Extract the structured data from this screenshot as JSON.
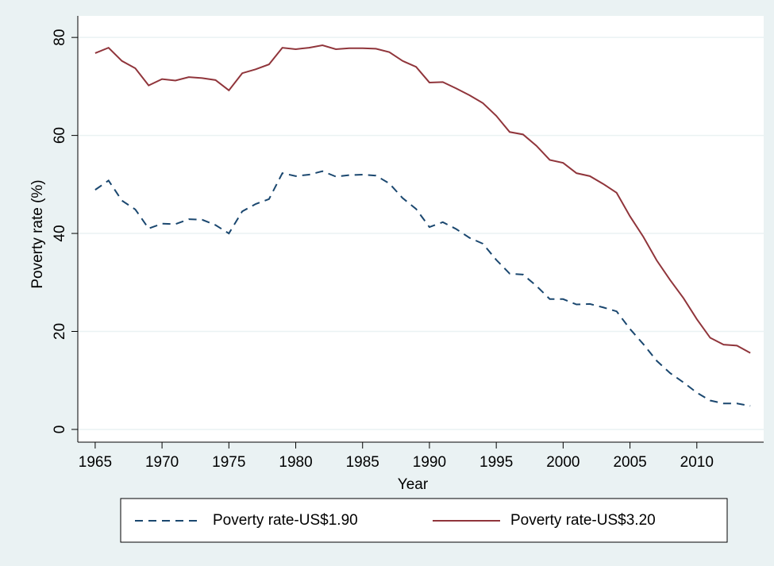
{
  "chart_data": {
    "type": "line",
    "x_label": "Year",
    "y_label": "Poverty rate (%)",
    "x": [
      1965,
      1966,
      1967,
      1968,
      1969,
      1970,
      1971,
      1972,
      1973,
      1974,
      1975,
      1976,
      1977,
      1978,
      1979,
      1980,
      1981,
      1982,
      1983,
      1984,
      1985,
      1986,
      1987,
      1988,
      1989,
      1990,
      1991,
      1992,
      1993,
      1994,
      1995,
      1996,
      1997,
      1998,
      1999,
      2000,
      2001,
      2002,
      2003,
      2004,
      2005,
      2006,
      2007,
      2008,
      2009,
      2010,
      2011,
      2012,
      2013,
      2014
    ],
    "series": [
      {
        "name": "Poverty rate-US$1.90",
        "color": "#1a476f",
        "style": "dashed",
        "values": [
          48.9,
          50.8,
          46.7,
          44.9,
          41.0,
          42.0,
          41.9,
          42.9,
          42.8,
          41.7,
          40.0,
          44.5,
          46.0,
          47.0,
          52.3,
          51.7,
          52.0,
          52.7,
          51.6,
          51.9,
          52.0,
          51.8,
          50.2,
          47.2,
          45.0,
          41.3,
          42.3,
          40.9,
          39.1,
          37.9,
          34.6,
          31.8,
          31.6,
          29.3,
          26.6,
          26.6,
          25.5,
          25.6,
          24.9,
          24.1,
          20.5,
          17.4,
          14.0,
          11.5,
          9.6,
          7.5,
          5.9,
          5.3,
          5.3,
          4.8
        ]
      },
      {
        "name": "Poverty rate-US$3.20",
        "color": "#90353b",
        "style": "solid",
        "values": [
          76.8,
          77.9,
          75.2,
          73.7,
          70.2,
          71.5,
          71.2,
          71.9,
          71.7,
          71.3,
          69.2,
          72.7,
          73.5,
          74.5,
          77.9,
          77.6,
          77.9,
          78.4,
          77.6,
          77.8,
          77.8,
          77.7,
          77.0,
          75.2,
          74.0,
          70.8,
          70.9,
          69.6,
          68.2,
          66.6,
          64.0,
          60.7,
          60.2,
          57.9,
          55.0,
          54.4,
          52.3,
          51.7,
          50.1,
          48.3,
          43.5,
          39.3,
          34.5,
          30.5,
          26.8,
          22.5,
          18.7,
          17.3,
          17.1,
          15.6
        ]
      }
    ],
    "xlim": [
      1963.7,
      2015
    ],
    "xticks": [
      1965,
      1970,
      1975,
      1980,
      1985,
      1990,
      1995,
      2000,
      2005,
      2010
    ],
    "ylim": [
      -2.6,
      84.4
    ],
    "yticks": [
      0,
      20,
      40,
      60,
      80
    ],
    "grid": true,
    "legend": "bottom"
  }
}
